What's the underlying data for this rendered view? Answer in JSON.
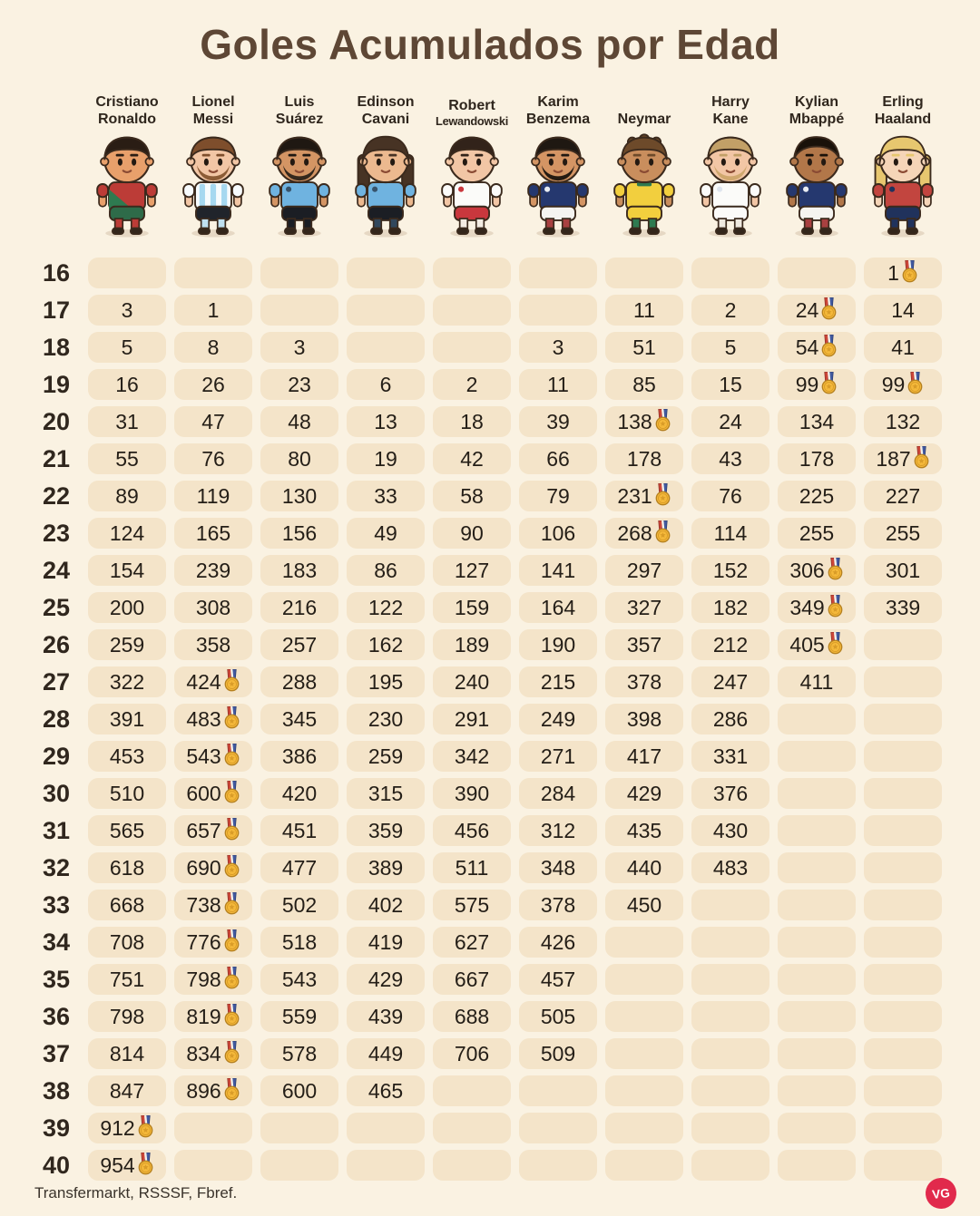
{
  "title": "Goles Acumulados por Edad",
  "footer": {
    "sources": "Transfermarkt, RSSSF, Fbref.",
    "logo": "VG"
  },
  "colors": {
    "background": "#faf2e2",
    "pill": "#f4e4c9",
    "title_text": "#5e4735",
    "number_text": "#241e17",
    "logo_bg": "#e12a4c",
    "medal_gold": "#f4b83a"
  },
  "players": [
    {
      "full_name": "Cristiano Ronaldo",
      "name_lines": [
        "Cristiano",
        "Ronaldo"
      ],
      "avatar": {
        "skin": "#e8a06b",
        "hair": "#2a1d14",
        "hair_style": "short",
        "beard": null,
        "jersey": "#bc3c37",
        "accent": "#2e7a50",
        "pattern": "sash",
        "shorts": "#2e6b49",
        "socks": "#bc3c37"
      }
    },
    {
      "full_name": "Lionel Messi",
      "name_lines": [
        "Lionel",
        "Messi"
      ],
      "avatar": {
        "skin": "#f2c6a5",
        "hair": "#7e4e2c",
        "hair_style": "short",
        "beard": "#8c5c36",
        "jersey": "#f7fbfd",
        "accent": "#a6d8f0",
        "pattern": "stripes",
        "shorts": "#20242b",
        "socks": "#bfe0f0"
      }
    },
    {
      "full_name": "Luis Suárez",
      "name_lines": [
        "Luis",
        "Suárez"
      ],
      "avatar": {
        "skin": "#d49564",
        "hair": "#1f1812",
        "hair_style": "short",
        "beard": "#35281d",
        "jersey": "#6fb3e0",
        "accent": "#37536b",
        "pattern": "crest",
        "shorts": "#1b1e24",
        "socks": "#1b1e24"
      }
    },
    {
      "full_name": "Edinson Cavani",
      "name_lines": [
        "Edinson",
        "Cavani"
      ],
      "avatar": {
        "skin": "#ecb98f",
        "hair": "#473324",
        "hair_style": "long",
        "beard": null,
        "jersey": "#6fb3e0",
        "accent": "#37536b",
        "pattern": "crest",
        "shorts": "#1b1e24",
        "socks": "#31475c"
      }
    },
    {
      "full_name": "Robert Lewandowski",
      "name_lines": [
        "Robert",
        "Lewandowski"
      ],
      "avatar": {
        "skin": "#f2c6a5",
        "hair": "#32231a",
        "hair_style": "short",
        "beard": null,
        "jersey": "#fbfbf9",
        "accent": "#c9373d",
        "pattern": "crest",
        "shorts": "#c9373d",
        "socks": "#f3ece2"
      }
    },
    {
      "full_name": "Karim Benzema",
      "name_lines": [
        "Karim",
        "Benzema"
      ],
      "avatar": {
        "skin": "#d49564",
        "hair": "#1f1812",
        "hair_style": "short",
        "beard": "#241a12",
        "jersey": "#25386f",
        "accent": "#e8ecf2",
        "pattern": "crest",
        "shorts": "#f5f4f0",
        "socks": "#a84040"
      }
    },
    {
      "full_name": "Neymar",
      "name_lines": [
        "Neymar"
      ],
      "avatar": {
        "skin": "#c98e5d",
        "hair": "#6d4a2a",
        "hair_style": "curly",
        "beard": null,
        "jersey": "#f2cf3e",
        "accent": "#2e7a50",
        "pattern": "collar",
        "shorts": "#f2cf3e",
        "socks": "#2e7a50"
      }
    },
    {
      "full_name": "Harry Kane",
      "name_lines": [
        "Harry",
        "Kane"
      ],
      "avatar": {
        "skin": "#f2c6a5",
        "hair": "#c2a067",
        "hair_style": "short",
        "beard": "#cfa76d",
        "jersey": "#fbfbf9",
        "accent": "#dfe5ee",
        "pattern": "crest",
        "shorts": "#fbfbf9",
        "socks": "#efe9df"
      }
    },
    {
      "full_name": "Kylian Mbappé",
      "name_lines": [
        "Kylian",
        "Mbappé"
      ],
      "avatar": {
        "skin": "#b27749",
        "hair": "#191109",
        "hair_style": "buzz",
        "beard": null,
        "jersey": "#25386f",
        "accent": "#e8ecf2",
        "pattern": "crest",
        "shorts": "#f5f4f0",
        "socks": "#a84040"
      }
    },
    {
      "full_name": "Erling Haaland",
      "name_lines": [
        "Erling",
        "Haaland"
      ],
      "avatar": {
        "skin": "#f5d5b8",
        "hair": "#e7c76f",
        "hair_style": "long",
        "beard": null,
        "jersey": "#c2453f",
        "accent": "#20325c",
        "pattern": "crest",
        "shorts": "#20325c",
        "socks": "#20325c"
      }
    }
  ],
  "chart_data": {
    "type": "table",
    "title": "Goles Acumulados por Edad",
    "columns": [
      "Cristiano Ronaldo",
      "Lionel Messi",
      "Luis Suárez",
      "Edinson Cavani",
      "Robert Lewandowski",
      "Karim Benzema",
      "Neymar",
      "Harry Kane",
      "Kylian Mbappé",
      "Erling Haaland"
    ],
    "row_header_label": "Edad",
    "ages": [
      16,
      17,
      18,
      19,
      20,
      21,
      22,
      23,
      24,
      25,
      26,
      27,
      28,
      29,
      30,
      31,
      32,
      33,
      34,
      35,
      36,
      37,
      38,
      39,
      40
    ],
    "rows": [
      [
        null,
        null,
        null,
        null,
        null,
        null,
        null,
        null,
        null,
        1
      ],
      [
        3,
        1,
        null,
        null,
        null,
        null,
        11,
        2,
        24,
        14
      ],
      [
        5,
        8,
        3,
        null,
        null,
        3,
        51,
        5,
        54,
        41
      ],
      [
        16,
        26,
        23,
        6,
        2,
        11,
        85,
        15,
        99,
        99
      ],
      [
        31,
        47,
        48,
        13,
        18,
        39,
        138,
        24,
        134,
        132
      ],
      [
        55,
        76,
        80,
        19,
        42,
        66,
        178,
        43,
        178,
        187
      ],
      [
        89,
        119,
        130,
        33,
        58,
        79,
        231,
        76,
        225,
        227
      ],
      [
        124,
        165,
        156,
        49,
        90,
        106,
        268,
        114,
        255,
        255
      ],
      [
        154,
        239,
        183,
        86,
        127,
        141,
        297,
        152,
        306,
        301
      ],
      [
        200,
        308,
        216,
        122,
        159,
        164,
        327,
        182,
        349,
        339
      ],
      [
        259,
        358,
        257,
        162,
        189,
        190,
        357,
        212,
        405,
        null
      ],
      [
        322,
        424,
        288,
        195,
        240,
        215,
        378,
        247,
        411,
        null
      ],
      [
        391,
        483,
        345,
        230,
        291,
        249,
        398,
        286,
        null,
        null
      ],
      [
        453,
        543,
        386,
        259,
        342,
        271,
        417,
        331,
        null,
        null
      ],
      [
        510,
        600,
        420,
        315,
        390,
        284,
        429,
        376,
        null,
        null
      ],
      [
        565,
        657,
        451,
        359,
        456,
        312,
        435,
        430,
        null,
        null
      ],
      [
        618,
        690,
        477,
        389,
        511,
        348,
        440,
        483,
        null,
        null
      ],
      [
        668,
        738,
        502,
        402,
        575,
        378,
        450,
        null,
        null,
        null
      ],
      [
        708,
        776,
        518,
        419,
        627,
        426,
        null,
        null,
        null,
        null
      ],
      [
        751,
        798,
        543,
        429,
        667,
        457,
        null,
        null,
        null,
        null
      ],
      [
        798,
        819,
        559,
        439,
        688,
        505,
        null,
        null,
        null,
        null
      ],
      [
        814,
        834,
        578,
        449,
        706,
        509,
        null,
        null,
        null,
        null
      ],
      [
        847,
        896,
        600,
        465,
        null,
        null,
        null,
        null,
        null,
        null
      ],
      [
        912,
        null,
        null,
        null,
        null,
        null,
        null,
        null,
        null,
        null
      ],
      [
        954,
        null,
        null,
        null,
        null,
        null,
        null,
        null,
        null,
        null
      ]
    ],
    "medals": {
      "16": [
        9
      ],
      "17": [
        8
      ],
      "18": [
        8
      ],
      "19": [
        8,
        9
      ],
      "20": [
        6
      ],
      "21": [
        9
      ],
      "22": [
        6
      ],
      "23": [
        6
      ],
      "24": [
        8
      ],
      "25": [
        8
      ],
      "26": [
        8
      ],
      "27": [
        1
      ],
      "28": [
        1
      ],
      "29": [
        1
      ],
      "30": [
        1
      ],
      "31": [
        1
      ],
      "32": [
        1
      ],
      "33": [
        1
      ],
      "34": [
        1
      ],
      "35": [
        1
      ],
      "36": [
        1
      ],
      "37": [
        1
      ],
      "38": [
        1
      ],
      "39": [
        0
      ],
      "40": [
        0
      ]
    },
    "legend": "medal = record holder for that age",
    "grid": false
  }
}
